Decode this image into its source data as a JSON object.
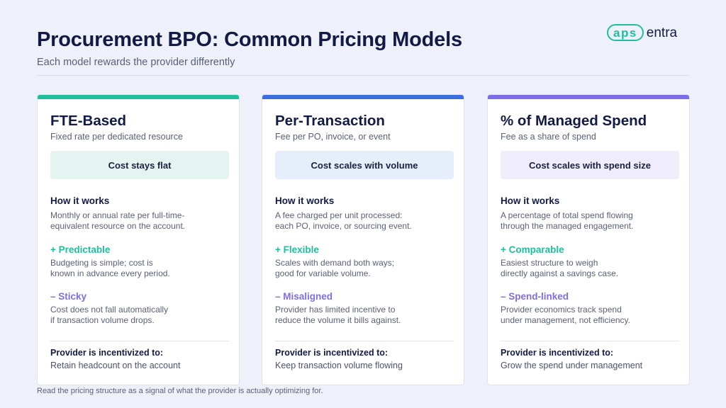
{
  "header": {
    "title": "Procurement BPO: Common Pricing Models",
    "subtitle": "Each model rewards the provider differently"
  },
  "logo": {
    "pill_text": "aps",
    "text": "entra",
    "color": "#1fbf9e"
  },
  "cards": [
    {
      "title": "FTE-Based",
      "subtitle": "Fixed rate per dedicated resource",
      "pill": "Cost stays flat",
      "accent": "#1fbf9e",
      "pill_bg": "#e5f4f1",
      "how_title": "How it works",
      "how_lines": [
        "Monthly or annual rate per full-time-",
        "equivalent resource on the account."
      ],
      "pro_title": "+ Predictable",
      "pro_lines": [
        "Budgeting is simple; cost is",
        "known in advance every period."
      ],
      "con_title": "– Sticky",
      "con_lines": [
        "Cost does not fall automatically",
        "if transaction volume drops."
      ],
      "incentive_title": "Provider is incentivized to:",
      "incentive": "Retain headcount on the account"
    },
    {
      "title": "Per-Transaction",
      "subtitle": "Fee per PO, invoice, or event",
      "pill": "Cost scales with volume",
      "accent": "#3b6fe0",
      "pill_bg": "#e6edfb",
      "how_title": "How it works",
      "how_lines": [
        "A fee charged per unit processed:",
        "each PO, invoice, or sourcing event."
      ],
      "pro_title": "+ Flexible",
      "pro_lines": [
        "Scales with demand both ways;",
        "good for variable volume."
      ],
      "con_title": "– Misaligned",
      "con_lines": [
        "Provider has limited incentive to",
        "reduce the volume it bills against."
      ],
      "incentive_title": "Provider is incentivized to:",
      "incentive": "Keep transaction volume flowing"
    },
    {
      "title": "% of Managed Spend",
      "subtitle": "Fee as a share of spend",
      "pill": "Cost scales with spend size",
      "accent": "#7e6ee6",
      "pill_bg": "#efedfb",
      "how_title": "How it works",
      "how_lines": [
        "A percentage of total spend flowing",
        "through the managed engagement."
      ],
      "pro_title": "+ Comparable",
      "pro_lines": [
        "Easiest structure to weigh",
        "directly against a savings case."
      ],
      "con_title": "– Spend-linked",
      "con_lines": [
        "Provider economics track spend",
        "under management, not efficiency."
      ],
      "incentive_title": "Provider is incentivized to:",
      "incentive": "Grow the spend under management"
    }
  ],
  "colors": {
    "pro": "#1fbf9e",
    "con": "#7e6ee6"
  },
  "footer": "Read the pricing structure as a signal of what the provider is actually optimizing for."
}
